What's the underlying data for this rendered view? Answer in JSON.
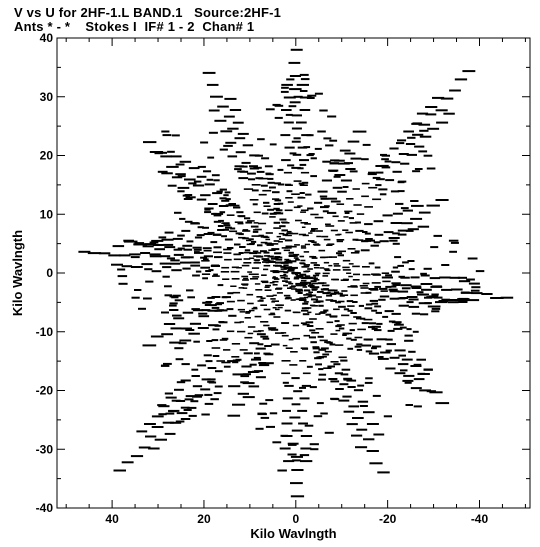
{
  "header": {
    "line1": "V vs U for 2HF-1.L BAND.1   Source:2HF-1",
    "line2": "Ants * - *    Stokes I  IF# 1 - 2  Chan# 1"
  },
  "chart_data": {
    "type": "scatter",
    "title": "V vs U for 2HF-1.L BAND.1   Source:2HF-1",
    "subtitle": "Ants * - *    Stokes I  IF# 1 - 2  Chan# 1",
    "xlabel": "Kilo Wavlngth",
    "ylabel": "Kilo Wavlngth",
    "xlim": [
      52,
      -51
    ],
    "ylim": [
      -40,
      40
    ],
    "x_inverted": true,
    "xticks": [
      40,
      20,
      0,
      -20,
      -40
    ],
    "yticks": [
      40,
      30,
      20,
      10,
      0,
      -10,
      -20,
      -30,
      -40
    ],
    "xtick_labels": [
      "40",
      "20",
      "0",
      "-20",
      "-40"
    ],
    "ytick_labels": [
      "40",
      "30",
      "20",
      "10",
      "0",
      "-10",
      "-20",
      "-30",
      "-40"
    ],
    "grid": false,
    "legend": "none",
    "marker_color": "#000000",
    "arms": [
      {
        "u_end": 0,
        "v_end": 38
      },
      {
        "u_end": 19,
        "v_end": 34
      },
      {
        "u_end": 32,
        "v_end": 22
      },
      {
        "u_end": 36,
        "v_end": 5
      },
      {
        "u_end": 46,
        "v_end": 4
      },
      {
        "u_end": 32,
        "v_end": -12
      },
      {
        "u_end": 38,
        "v_end": -34
      },
      {
        "u_end": 14,
        "v_end": -24
      },
      {
        "u_end": 0,
        "v_end": -38
      },
      {
        "u_end": -19,
        "v_end": -34
      },
      {
        "u_end": -32,
        "v_end": -22
      },
      {
        "u_end": -36,
        "v_end": -5
      },
      {
        "u_end": -46,
        "v_end": -4
      },
      {
        "u_end": -32,
        "v_end": 12
      },
      {
        "u_end": -38,
        "v_end": 34
      },
      {
        "u_end": -14,
        "v_end": 24
      }
    ],
    "dense_tracks": [
      {
        "u1": 16,
        "v1": 14,
        "u2": -14,
        "v2": -13
      },
      {
        "u1": 26,
        "v1": 10,
        "u2": -26,
        "v2": -10
      },
      {
        "u1": 6,
        "v1": 18,
        "u2": -6,
        "v2": -18
      },
      {
        "u1": 18,
        "v1": 10,
        "u2": -18,
        "v2": -10
      }
    ]
  }
}
